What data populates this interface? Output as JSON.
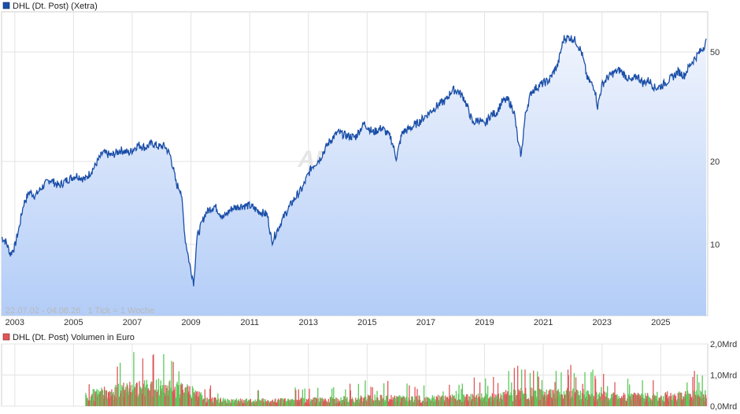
{
  "chart_data": [
    {
      "type": "line",
      "legend": "DHL (Dt. Post) (Xetra)",
      "info": "22.07.02 - 04.08.26   1 Tick = 1 Woche",
      "watermark": "ARIVA",
      "y_scale": "log",
      "ylim": [
        5.5,
        70
      ],
      "y_ticks": [
        {
          "label": "10",
          "value": 10
        },
        {
          "label": "20",
          "value": 20
        },
        {
          "label": "50",
          "value": 50
        }
      ],
      "xlim": [
        2002.55,
        2026.6
      ],
      "x_ticks": [
        "2003",
        "2005",
        "2007",
        "2009",
        "2011",
        "2013",
        "2015",
        "2017",
        "2019",
        "2021",
        "2023",
        "2025"
      ],
      "x_tick_values": [
        2003,
        2005,
        2007,
        2009,
        2011,
        2013,
        2015,
        2017,
        2019,
        2021,
        2023,
        2025
      ],
      "grid": true,
      "series": [
        {
          "name": "DHL (Dt. Post) (Xetra)",
          "color": "#1a4ea8",
          "x": [
            2002.55,
            2002.7,
            2002.85,
            2003.0,
            2003.15,
            2003.3,
            2003.5,
            2003.7,
            2003.9,
            2004.2,
            2004.5,
            2004.8,
            2005.1,
            2005.4,
            2005.7,
            2006.0,
            2006.3,
            2006.6,
            2006.9,
            2007.2,
            2007.45,
            2007.7,
            2007.9,
            2008.1,
            2008.3,
            2008.5,
            2008.65,
            2008.8,
            2008.95,
            2009.1,
            2009.2,
            2009.5,
            2009.8,
            2010.1,
            2010.4,
            2010.7,
            2011.0,
            2011.3,
            2011.6,
            2011.75,
            2011.9,
            2012.2,
            2012.5,
            2012.8,
            2013.1,
            2013.4,
            2013.7,
            2014.0,
            2014.3,
            2014.6,
            2014.9,
            2015.2,
            2015.5,
            2015.8,
            2016.0,
            2016.2,
            2016.5,
            2016.8,
            2017.1,
            2017.4,
            2017.7,
            2017.9,
            2018.1,
            2018.3,
            2018.6,
            2018.8,
            2019.0,
            2019.2,
            2019.4,
            2019.6,
            2019.8,
            2020.0,
            2020.15,
            2020.25,
            2020.4,
            2020.6,
            2020.9,
            2021.2,
            2021.5,
            2021.7,
            2021.9,
            2022.1,
            2022.3,
            2022.5,
            2022.75,
            2022.85,
            2023.0,
            2023.2,
            2023.4,
            2023.6,
            2023.8,
            2024.0,
            2024.2,
            2024.4,
            2024.6,
            2024.8,
            2025.0,
            2025.2,
            2025.4,
            2025.6,
            2025.8,
            2026.0,
            2026.2,
            2026.4,
            2026.55
          ],
          "values": [
            10.6,
            10.2,
            9.2,
            9.8,
            11.5,
            14.0,
            15.5,
            15.0,
            16.0,
            17.2,
            16.3,
            17.2,
            17.8,
            17.2,
            19.0,
            21.5,
            21.0,
            22.0,
            21.5,
            23.0,
            22.5,
            23.3,
            22.6,
            22.8,
            21.0,
            16.5,
            15.8,
            10.5,
            8.5,
            7.2,
            10.5,
            13.0,
            13.8,
            12.5,
            13.5,
            13.8,
            13.8,
            13.2,
            12.8,
            10.2,
            11.0,
            12.8,
            14.5,
            16.0,
            19.0,
            20.5,
            23.5,
            25.5,
            24.8,
            24.5,
            27.5,
            25.5,
            26.5,
            24.5,
            20.5,
            25.5,
            26.5,
            28.0,
            30.0,
            32.0,
            33.5,
            36.5,
            36.0,
            34.0,
            27.5,
            28.5,
            27.0,
            29.5,
            30.0,
            33.0,
            33.5,
            30.5,
            23.0,
            21.0,
            30.0,
            36.0,
            38.0,
            39.5,
            45.0,
            56.0,
            56.5,
            55.0,
            50.0,
            40.0,
            37.0,
            31.5,
            38.0,
            40.5,
            42.0,
            43.0,
            41.0,
            39.0,
            41.0,
            38.5,
            39.5,
            37.0,
            37.5,
            39.0,
            40.5,
            42.5,
            41.0,
            45.0,
            48.0,
            51.0,
            54.5
          ]
        }
      ]
    },
    {
      "type": "bar",
      "legend": "DHL (Dt. Post) Volumen in Euro",
      "ylim": [
        0,
        2.0
      ],
      "y_ticks": [
        {
          "label": "0,0Mrd",
          "value": 0
        },
        {
          "label": "1,0Mrd",
          "value": 1.0
        },
        {
          "label": "2,0Mrd",
          "value": 2.0
        }
      ],
      "xlim": [
        2002.55,
        2026.6
      ],
      "x_tick_values": [
        2003,
        2005,
        2007,
        2009,
        2011,
        2013,
        2015,
        2017,
        2019,
        2021,
        2023,
        2025
      ],
      "grid": true,
      "data_start": 2005.4,
      "up_color": "#5dc85a",
      "down_color": "#e0575a",
      "level_profile": {
        "x": [
          2005.4,
          2006.0,
          2007.0,
          2008.0,
          2008.9,
          2009.5,
          2011.0,
          2013.0,
          2015.0,
          2017.0,
          2019.0,
          2020.3,
          2021.0,
          2022.0,
          2023.0,
          2024.0,
          2025.0,
          2026.55
        ],
        "values": [
          0.42,
          0.5,
          0.65,
          0.72,
          0.62,
          0.25,
          0.2,
          0.22,
          0.3,
          0.28,
          0.35,
          0.5,
          0.45,
          0.48,
          0.4,
          0.35,
          0.38,
          0.42
        ]
      }
    }
  ]
}
